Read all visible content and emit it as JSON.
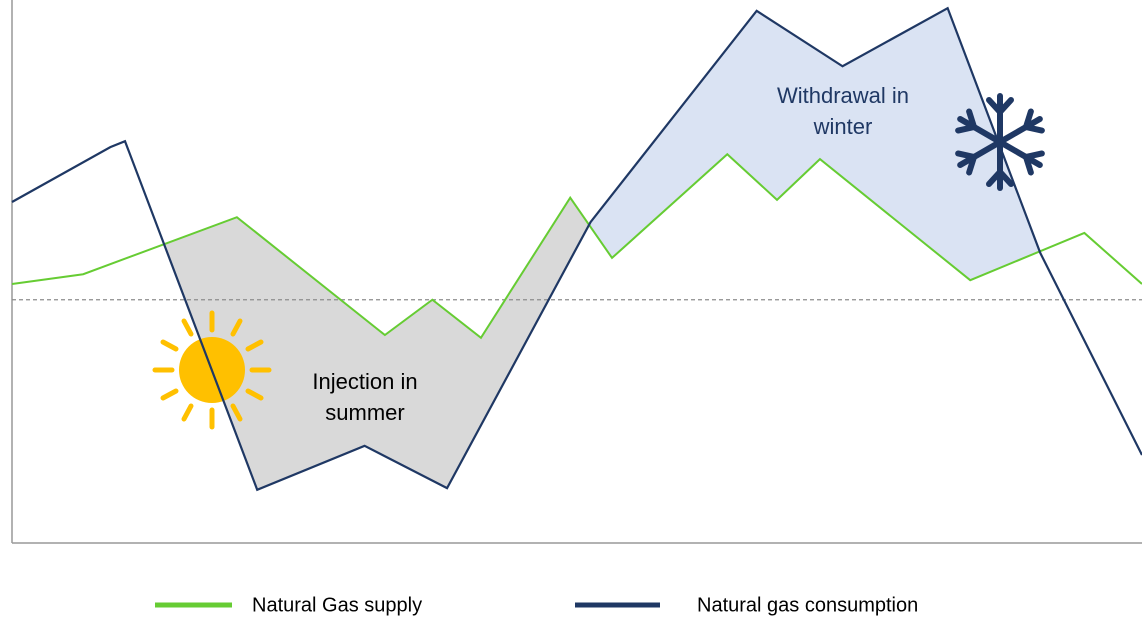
{
  "chart_data": {
    "type": "line",
    "xlim": [
      0,
      100
    ],
    "ylim": [
      0,
      100
    ],
    "reference_line": 44.8,
    "series": [
      {
        "name": "Natural Gas supply",
        "color": "#66cc33",
        "x": [
          0,
          6.3,
          19.9,
          33.0,
          37.2,
          41.5,
          49.4,
          53.1,
          63.3,
          67.7,
          71.5,
          84.8,
          94.9,
          100
        ],
        "values": [
          47.7,
          49.5,
          60.0,
          38.3,
          44.8,
          37.8,
          63.6,
          52.5,
          71.6,
          63.2,
          70.7,
          48.4,
          57.1,
          47.7
        ]
      },
      {
        "name": "Natural gas consumption",
        "color": "#1f3864",
        "x": [
          0,
          8.7,
          10.0,
          21.7,
          31.2,
          38.5,
          51.2,
          65.9,
          73.5,
          82.8,
          91.0,
          100
        ],
        "values": [
          62.8,
          72.9,
          74.0,
          9.8,
          17.9,
          10.1,
          59.1,
          98.0,
          87.8,
          98.5,
          53.4,
          16.2
        ]
      }
    ],
    "annotations": [
      {
        "lines": [
          "Injection in",
          "summer"
        ],
        "color": "#000000",
        "fill": "#d9d9d9"
      },
      {
        "lines": [
          "Withdrawal in",
          "winter"
        ],
        "color": "#1f3864",
        "fill": "#dae3f3"
      }
    ]
  }
}
